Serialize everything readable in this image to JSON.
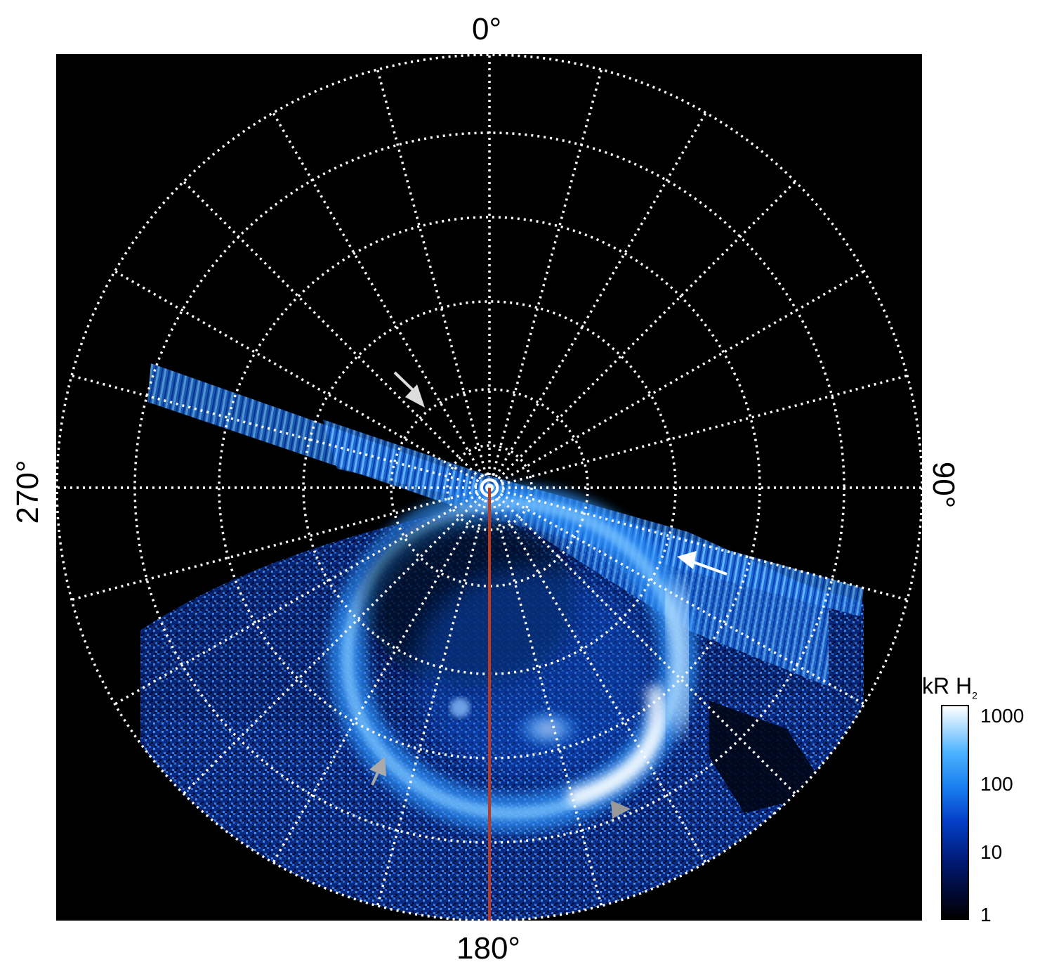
{
  "angle_labels": {
    "top": "0°",
    "right": "90°",
    "bottom": "180°",
    "left": "270°"
  },
  "colorbar": {
    "title": "kR H",
    "title_sub": "2",
    "ticks": [
      "1000",
      "100",
      "10",
      "1"
    ],
    "colors": [
      "#000000",
      "#001c7a",
      "#1a7ff0",
      "#ffffff"
    ]
  },
  "colors": {
    "meridian": "#c0391b",
    "grid": "#ffffff",
    "background": "#000000"
  }
}
